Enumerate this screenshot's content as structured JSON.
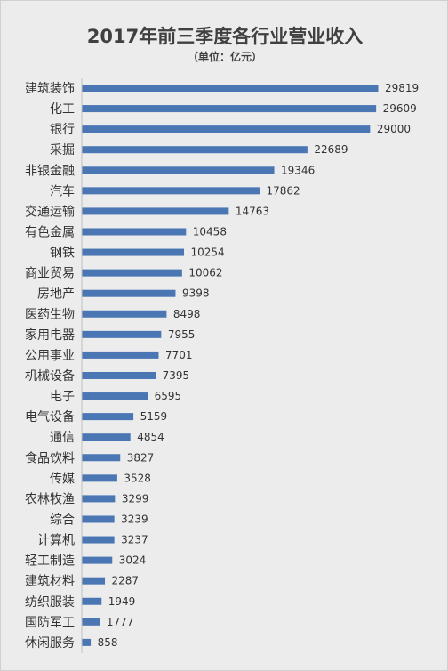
{
  "chart_data": {
    "type": "bar",
    "orientation": "horizontal",
    "title": "2017年前三季度各行业营业收入",
    "subtitle": "（单位：亿元）",
    "xlabel": "",
    "ylabel": "",
    "xlim": [
      0,
      29819
    ],
    "grid": false,
    "legend": "none",
    "color": "#4a77b4",
    "categories": [
      "建筑装饰",
      "化工",
      "银行",
      "采掘",
      "非银金融",
      "汽车",
      "交通运输",
      "有色金属",
      "钢铁",
      "商业贸易",
      "房地产",
      "医药生物",
      "家用电器",
      "公用事业",
      "机械设备",
      "电子",
      "电气设备",
      "通信",
      "食品饮料",
      "传媒",
      "农林牧渔",
      "综合",
      "计算机",
      "轻工制造",
      "建筑材料",
      "纺织服装",
      "国防军工",
      "休闲服务"
    ],
    "values": [
      29819,
      29609,
      29000,
      22689,
      19346,
      17862,
      14763,
      10458,
      10254,
      10062,
      9398,
      8498,
      7955,
      7701,
      7395,
      6595,
      5159,
      4854,
      3827,
      3528,
      3299,
      3239,
      3237,
      3024,
      2287,
      1949,
      1777,
      858
    ]
  }
}
